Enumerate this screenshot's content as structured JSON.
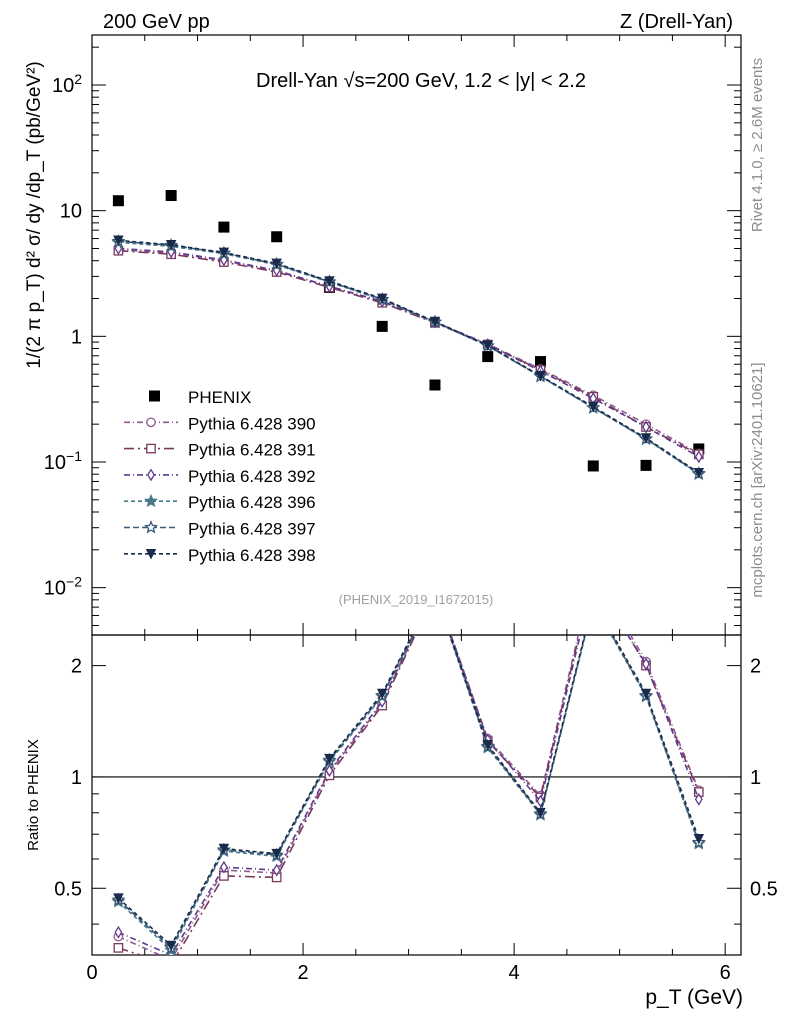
{
  "header": {
    "left": "200 GeV pp",
    "right": "Z (Drell-Yan)"
  },
  "side_labels": {
    "rivet": "Rivet 4.1.0, ≥ 2.6M events",
    "mcplots": "mcplots.cern.ch [arXiv:2401.10621]"
  },
  "chart_data": {
    "type": "line",
    "title": "Drell-Yan √s=200 GeV,  1.2 < |y| < 2.2",
    "analysis_tag": "(PHENIX_2019_I1672015)",
    "xlabel": "p_T (GeV)",
    "ylabel": "1/(2 π p_T) d² σ/ dy /dp_T (pb/GeV²)",
    "ratio_ylabel": "Ratio to PHENIX",
    "xlim": [
      0,
      6.15
    ],
    "ylim": [
      0.0042,
      250
    ],
    "ylog": true,
    "ratio_ylim": [
      0.33,
      2.42
    ],
    "x_ticks": [
      "0",
      "2",
      "4",
      "6"
    ],
    "y_ticks": [
      "10⁻²",
      "10⁻¹",
      "1",
      "10",
      "10²"
    ],
    "ratio_ticks": [
      "0.5",
      "1",
      "2"
    ],
    "x": [
      0.25,
      0.75,
      1.25,
      1.75,
      2.25,
      2.75,
      3.25,
      3.75,
      4.25,
      4.75,
      5.25,
      5.75
    ],
    "data": {
      "name": "PHENIX",
      "values": [
        12,
        13.2,
        7.4,
        6.2,
        2.45,
        1.2,
        0.41,
        0.69,
        0.63,
        0.093,
        0.094,
        0.127
      ]
    },
    "series": [
      {
        "name": "Pythia 6.428 390",
        "color": "#8e5a8f",
        "marker": "circle-open",
        "dash": "6,3,1,3",
        "values": [
          4.9,
          4.6,
          4.0,
          3.3,
          2.5,
          1.88,
          1.3,
          0.87,
          0.55,
          0.34,
          0.2,
          0.117
        ],
        "ratio": [
          0.37,
          0.32,
          0.56,
          0.55,
          1.03,
          1.58,
          3.2,
          1.27,
          0.89,
          3.6,
          2.05,
          0.92
        ]
      },
      {
        "name": "Pythia 6.428 391",
        "color": "#7a3a5a",
        "marker": "square-open",
        "dash": "10,4,2,4",
        "values": [
          4.8,
          4.5,
          3.9,
          3.25,
          2.45,
          1.85,
          1.28,
          0.86,
          0.54,
          0.33,
          0.19,
          0.115
        ],
        "ratio": [
          0.345,
          0.31,
          0.54,
          0.535,
          1.01,
          1.56,
          3.15,
          1.25,
          0.88,
          3.5,
          2.0,
          0.91
        ]
      },
      {
        "name": "Pythia 6.428 392",
        "color": "#5e3a8e",
        "marker": "diamond-open",
        "dash": "6,3,1,3",
        "values": [
          5.0,
          4.7,
          4.05,
          3.35,
          2.5,
          1.9,
          1.3,
          0.86,
          0.53,
          0.32,
          0.19,
          0.11
        ],
        "ratio": [
          0.38,
          0.33,
          0.57,
          0.56,
          1.04,
          1.6,
          3.2,
          1.26,
          0.86,
          3.4,
          2.02,
          0.87
        ]
      },
      {
        "name": "Pythia 6.428 396",
        "color": "#4a7a8a",
        "marker": "star-filled",
        "dash": "4,3",
        "values": [
          5.6,
          5.2,
          4.55,
          3.7,
          2.7,
          1.95,
          1.29,
          0.84,
          0.48,
          0.27,
          0.152,
          0.08
        ],
        "ratio": [
          0.46,
          0.34,
          0.63,
          0.61,
          1.1,
          1.65,
          3.15,
          1.2,
          0.79,
          2.95,
          1.65,
          0.66
        ]
      },
      {
        "name": "Pythia 6.428 397",
        "color": "#3a5a7a",
        "marker": "star-open",
        "dash": "6,3",
        "values": [
          5.7,
          5.3,
          4.6,
          3.75,
          2.72,
          1.97,
          1.3,
          0.84,
          0.48,
          0.27,
          0.153,
          0.081
        ],
        "ratio": [
          0.465,
          0.345,
          0.635,
          0.615,
          1.11,
          1.66,
          3.17,
          1.21,
          0.795,
          2.97,
          1.66,
          0.665
        ]
      },
      {
        "name": "Pythia 6.428 398",
        "color": "#1a2a4a",
        "marker": "triangle-down-filled",
        "dash": "4,3",
        "values": [
          5.8,
          5.35,
          4.65,
          3.8,
          2.75,
          2.0,
          1.31,
          0.85,
          0.485,
          0.275,
          0.155,
          0.082
        ],
        "ratio": [
          0.47,
          0.35,
          0.64,
          0.62,
          1.12,
          1.68,
          3.2,
          1.22,
          0.8,
          3.0,
          1.68,
          0.68
        ]
      }
    ]
  }
}
